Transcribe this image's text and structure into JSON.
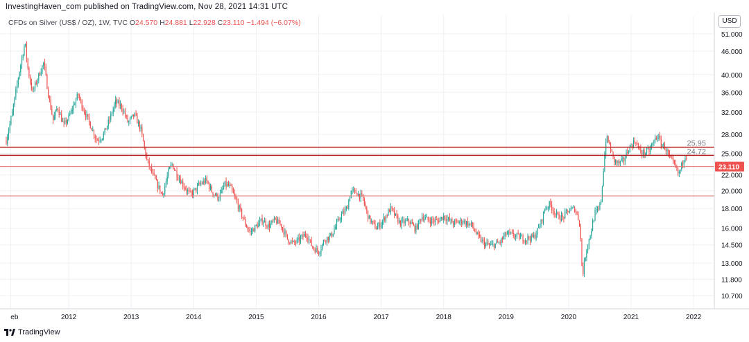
{
  "header": {
    "publisher_text": "InvestingHaven_com published on TradingView.com, Nov 28, 2021 14:31 UTC"
  },
  "legend": {
    "symbol": "CFDs on Silver (US$ / OZ), 1W, TVC",
    "o_label": "O",
    "o_value": "24.570",
    "h_label": "H",
    "h_value": "24.881",
    "l_label": "L",
    "l_value": "22.928",
    "c_label": "C",
    "c_value": "23.110",
    "change": "−1.494 (−6.07%)"
  },
  "price_axis": {
    "unit": "USD"
  },
  "footer": {
    "brand": "TradingView"
  },
  "colors": {
    "up": "#26a69a",
    "down": "#ef5350",
    "level_line": "#b71c1c",
    "grid": "#eef0f3",
    "price_tag": "#ef5350"
  },
  "chart_data": {
    "type": "candlestick",
    "y_scale": "log",
    "ylim": [
      9.9,
      57
    ],
    "y_ticks": [
      51.0,
      46.0,
      40.0,
      36.0,
      32.0,
      28.0,
      25.0,
      22.0,
      20.0,
      18.0,
      16.0,
      14.5,
      13.0,
      11.8,
      10.7
    ],
    "x_range": [
      2011.0,
      2022.5
    ],
    "x_ticks": [
      {
        "label": "eb",
        "x": 2011.07
      },
      {
        "label": "2012",
        "x": 2012.0
      },
      {
        "label": "2013",
        "x": 2013.0
      },
      {
        "label": "2014",
        "x": 2014.0
      },
      {
        "label": "2015",
        "x": 2015.0
      },
      {
        "label": "2016",
        "x": 2016.0
      },
      {
        "label": "2017",
        "x": 2017.0
      },
      {
        "label": "2018",
        "x": 2018.0
      },
      {
        "label": "2019",
        "x": 2019.0
      },
      {
        "label": "2020",
        "x": 2020.0
      },
      {
        "label": "2021",
        "x": 2021.0
      },
      {
        "label": "2022",
        "x": 2022.0
      }
    ],
    "horizontal_levels": [
      {
        "value": 25.95,
        "label": "25.95",
        "color": "#b71c1c",
        "width": 1.5
      },
      {
        "value": 24.72,
        "label": "24.72",
        "color": "#b71c1c",
        "width": 1.5
      },
      {
        "value": 23.11,
        "label": "",
        "color": "#e57373",
        "width": 1
      },
      {
        "value": 19.4,
        "label": "",
        "color": "#e57373",
        "width": 1
      }
    ],
    "last_price": {
      "value": 23.11,
      "label": "23.110"
    },
    "price_path": [
      [
        2011.0,
        27.0
      ],
      [
        2011.1,
        32.0
      ],
      [
        2011.2,
        40.0
      ],
      [
        2011.3,
        48.5
      ],
      [
        2011.35,
        41.0
      ],
      [
        2011.42,
        36.0
      ],
      [
        2011.5,
        39.0
      ],
      [
        2011.6,
        43.0
      ],
      [
        2011.68,
        35.0
      ],
      [
        2011.75,
        30.5
      ],
      [
        2011.82,
        33.0
      ],
      [
        2011.92,
        29.5
      ],
      [
        2012.0,
        31.0
      ],
      [
        2012.15,
        35.5
      ],
      [
        2012.22,
        33.0
      ],
      [
        2012.35,
        29.5
      ],
      [
        2012.45,
        27.0
      ],
      [
        2012.55,
        27.8
      ],
      [
        2012.65,
        30.5
      ],
      [
        2012.75,
        34.0
      ],
      [
        2012.85,
        33.0
      ],
      [
        2012.95,
        30.0
      ],
      [
        2013.05,
        31.5
      ],
      [
        2013.15,
        29.0
      ],
      [
        2013.25,
        24.0
      ],
      [
        2013.32,
        22.5
      ],
      [
        2013.4,
        21.0
      ],
      [
        2013.5,
        19.5
      ],
      [
        2013.6,
        22.5
      ],
      [
        2013.65,
        23.5
      ],
      [
        2013.75,
        21.8
      ],
      [
        2013.85,
        20.5
      ],
      [
        2013.95,
        19.5
      ],
      [
        2014.1,
        20.8
      ],
      [
        2014.2,
        21.3
      ],
      [
        2014.3,
        19.8
      ],
      [
        2014.4,
        19.2
      ],
      [
        2014.5,
        20.8
      ],
      [
        2014.58,
        20.5
      ],
      [
        2014.7,
        18.5
      ],
      [
        2014.82,
        16.5
      ],
      [
        2014.9,
        15.6
      ],
      [
        2015.0,
        16.2
      ],
      [
        2015.1,
        16.8
      ],
      [
        2015.2,
        16.2
      ],
      [
        2015.3,
        16.8
      ],
      [
        2015.4,
        16.3
      ],
      [
        2015.5,
        15.0
      ],
      [
        2015.6,
        14.6
      ],
      [
        2015.7,
        15.0
      ],
      [
        2015.8,
        15.5
      ],
      [
        2015.9,
        14.3
      ],
      [
        2016.0,
        13.9
      ],
      [
        2016.1,
        15.0
      ],
      [
        2016.2,
        15.3
      ],
      [
        2016.35,
        17.2
      ],
      [
        2016.45,
        18.0
      ],
      [
        2016.52,
        20.0
      ],
      [
        2016.6,
        19.8
      ],
      [
        2016.7,
        19.2
      ],
      [
        2016.8,
        17.0
      ],
      [
        2016.92,
        16.0
      ],
      [
        2017.0,
        16.5
      ],
      [
        2017.15,
        18.0
      ],
      [
        2017.3,
        16.5
      ],
      [
        2017.45,
        16.7
      ],
      [
        2017.55,
        15.9
      ],
      [
        2017.65,
        17.2
      ],
      [
        2017.75,
        16.8
      ],
      [
        2017.9,
        16.7
      ],
      [
        2018.0,
        17.2
      ],
      [
        2018.15,
        16.5
      ],
      [
        2018.3,
        16.7
      ],
      [
        2018.45,
        16.3
      ],
      [
        2018.55,
        15.2
      ],
      [
        2018.65,
        14.6
      ],
      [
        2018.75,
        14.4
      ],
      [
        2018.9,
        14.7
      ],
      [
        2019.0,
        15.5
      ],
      [
        2019.15,
        15.3
      ],
      [
        2019.3,
        15.0
      ],
      [
        2019.45,
        15.2
      ],
      [
        2019.55,
        16.4
      ],
      [
        2019.62,
        18.0
      ],
      [
        2019.7,
        18.5
      ],
      [
        2019.8,
        17.3
      ],
      [
        2019.9,
        17.0
      ],
      [
        2020.0,
        17.8
      ],
      [
        2020.1,
        18.0
      ],
      [
        2020.18,
        16.5
      ],
      [
        2020.22,
        12.0
      ],
      [
        2020.28,
        14.0
      ],
      [
        2020.35,
        15.5
      ],
      [
        2020.42,
        17.5
      ],
      [
        2020.48,
        17.8
      ],
      [
        2020.52,
        19.0
      ],
      [
        2020.56,
        23.0
      ],
      [
        2020.6,
        27.5
      ],
      [
        2020.65,
        26.5
      ],
      [
        2020.72,
        24.0
      ],
      [
        2020.8,
        23.5
      ],
      [
        2020.88,
        24.0
      ],
      [
        2020.95,
        25.5
      ],
      [
        2021.02,
        26.5
      ],
      [
        2021.08,
        27.0
      ],
      [
        2021.12,
        25.5
      ],
      [
        2021.2,
        25.0
      ],
      [
        2021.3,
        25.5
      ],
      [
        2021.38,
        27.2
      ],
      [
        2021.42,
        27.8
      ],
      [
        2021.48,
        26.5
      ],
      [
        2021.55,
        25.8
      ],
      [
        2021.62,
        24.2
      ],
      [
        2021.68,
        23.5
      ],
      [
        2021.72,
        22.8
      ],
      [
        2021.76,
        22.0
      ],
      [
        2021.8,
        23.0
      ],
      [
        2021.85,
        24.5
      ],
      [
        2021.88,
        25.1
      ],
      [
        2021.9,
        23.11
      ]
    ]
  }
}
